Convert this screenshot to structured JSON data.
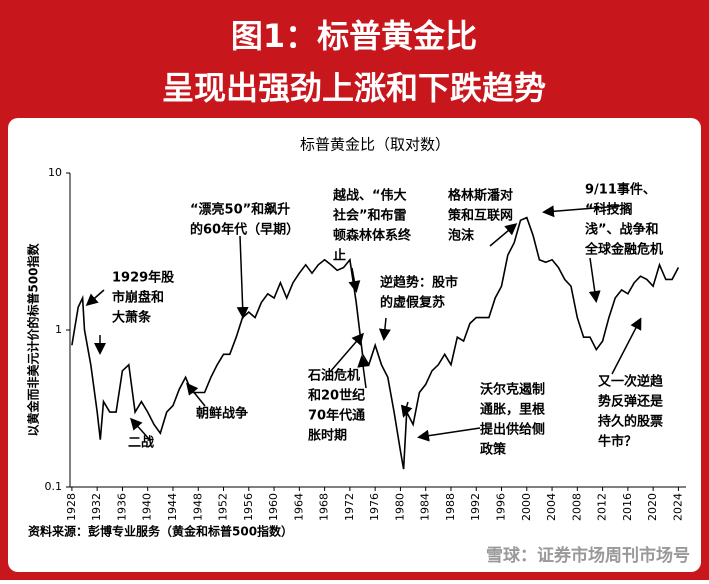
{
  "header": {
    "title_lines": [
      "图1：标普黄金比",
      "呈现出强劲上涨和下跌趋势"
    ]
  },
  "chart_data": {
    "type": "line",
    "title": "标普黄金比（取对数）",
    "y_label": "以黄金而非美元计价的标普500指数",
    "log_scale": true,
    "grid": false,
    "color": "#000000",
    "x": [
      1928,
      1929,
      1929.7,
      1930,
      1931,
      1932,
      1932.5,
      1933,
      1934,
      1935,
      1936,
      1937,
      1938,
      1939,
      1940,
      1941,
      1942,
      1943,
      1944,
      1945,
      1946,
      1947,
      1948,
      1949,
      1950,
      1951,
      1952,
      1953,
      1954,
      1955,
      1956,
      1957,
      1958,
      1959,
      1960,
      1961,
      1962,
      1963,
      1964,
      1965,
      1966,
      1967,
      1968,
      1969,
      1970,
      1971,
      1972,
      1973,
      1974,
      1975,
      1976,
      1977,
      1978,
      1979,
      1980,
      1980.5,
      1981,
      1982,
      1983,
      1984,
      1985,
      1986,
      1987,
      1988,
      1989,
      1990,
      1991,
      1992,
      1993,
      1994,
      1995,
      1996,
      1997,
      1998,
      1999,
      2000,
      2001,
      2002,
      2003,
      2004,
      2005,
      2006,
      2007,
      2008,
      2009,
      2010,
      2011,
      2012,
      2013,
      2014,
      2015,
      2016,
      2017,
      2018,
      2019,
      2020,
      2021,
      2022,
      2023,
      2024
    ],
    "values": [
      0.8,
      1.4,
      1.6,
      1.0,
      0.6,
      0.3,
      0.2,
      0.35,
      0.3,
      0.3,
      0.55,
      0.6,
      0.3,
      0.35,
      0.3,
      0.25,
      0.22,
      0.3,
      0.33,
      0.42,
      0.5,
      0.4,
      0.4,
      0.4,
      0.5,
      0.6,
      0.7,
      0.7,
      0.9,
      1.2,
      1.3,
      1.2,
      1.5,
      1.7,
      1.6,
      2.0,
      1.6,
      2.0,
      2.3,
      2.6,
      2.3,
      2.6,
      2.8,
      2.6,
      2.4,
      2.5,
      2.8,
      1.5,
      0.7,
      0.6,
      0.8,
      0.6,
      0.5,
      0.3,
      0.17,
      0.13,
      0.3,
      0.25,
      0.4,
      0.45,
      0.55,
      0.6,
      0.7,
      0.6,
      0.9,
      0.85,
      1.1,
      1.2,
      1.2,
      1.2,
      1.6,
      1.9,
      3.0,
      3.6,
      5.0,
      5.2,
      4.0,
      2.8,
      2.7,
      2.8,
      2.5,
      2.1,
      1.9,
      1.2,
      0.9,
      0.9,
      0.75,
      0.85,
      1.2,
      1.6,
      1.8,
      1.7,
      2.0,
      2.2,
      2.1,
      1.9,
      2.6,
      2.1,
      2.1,
      2.5
    ],
    "xlim": [
      1927.7,
      2025.2
    ],
    "xticks": [
      1928,
      1932,
      1936,
      1940,
      1944,
      1948,
      1952,
      1956,
      1960,
      1964,
      1968,
      1972,
      1976,
      1980,
      1984,
      1988,
      1992,
      1996,
      2000,
      2004,
      2008,
      2012,
      2016,
      2020,
      2024
    ],
    "ylim": [
      0.1,
      10
    ],
    "yticks": [
      10,
      1,
      0.1
    ],
    "annotations": [
      {
        "lines": [
          "1929年股",
          "市崩盘和",
          "大萧条"
        ]
      },
      {
        "lines": [
          "二战"
        ]
      },
      {
        "lines": [
          "朝鲜战争"
        ]
      },
      {
        "lines": [
          "“漂亮50”和飙升",
          "的60年代（早期）"
        ]
      },
      {
        "lines": [
          "越战、“伟大",
          "社会”和布雷",
          "顿森林体系终",
          "止"
        ]
      },
      {
        "lines": [
          "逆趋势：股市",
          "的虚假复苏"
        ]
      },
      {
        "lines": [
          "石油危机",
          "和20世纪",
          "70年代通",
          "胀时期"
        ]
      },
      {
        "lines": [
          "格林斯潘对",
          "策和互联网",
          "泡沫"
        ]
      },
      {
        "lines": [
          "沃尔克遏制",
          "通胀，里根",
          "提出供给侧",
          "政策"
        ]
      },
      {
        "lines": [
          "9/11事件、",
          "“科技搁",
          "浅”、战争和",
          "全球金融危机"
        ]
      },
      {
        "lines": [
          "又一次逆趋",
          "势反弹还是",
          "持久的股票",
          "牛市？"
        ]
      }
    ],
    "source": "资料来源：彭博专业服务（黄金和标普500指数）"
  },
  "footer": {
    "watermark": "雪球：证券市场周刊市场号"
  }
}
